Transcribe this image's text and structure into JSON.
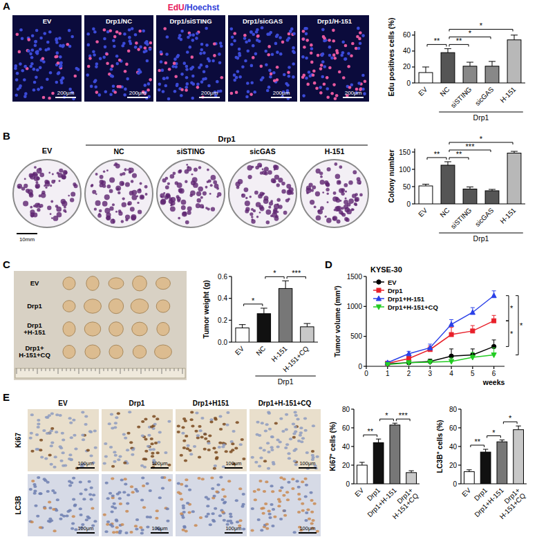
{
  "panel_labels": [
    "A",
    "B",
    "C",
    "D",
    "E"
  ],
  "images": {
    "A": {
      "title": [
        {
          "text": "EdU",
          "color": "#e8175d"
        },
        {
          "text": "/Hoechst",
          "color": "#2f3fd8"
        }
      ],
      "labels": [
        "EV",
        "Drp1/NC",
        "Drp1/siSTING",
        "Drp1/sicGAS",
        "Drp1/H-151"
      ],
      "scale_bar": "200μm"
    },
    "B": {
      "first": "EV",
      "group": "Drp1",
      "labels": [
        "NC",
        "siSTING",
        "sicGAS",
        "H-151"
      ],
      "scale_bar": "10mm"
    },
    "C": {
      "row_labels": [
        "EV",
        "Drp1",
        "Drp1\n+H-151",
        "Drp1+\nH-151+CQ"
      ]
    },
    "E": {
      "columns": [
        "EV",
        "Drp1",
        "Drp1+H151",
        "Drp1+H-151+CQ"
      ],
      "rows": [
        "Ki67",
        "LC3B"
      ],
      "scale_bar": "100μm"
    }
  },
  "chart_data": [
    {
      "type": "bar",
      "y_label": "Edu positives cells (%)",
      "categories": [
        "EV",
        "NC",
        "siSTING",
        "sicGAS",
        "H-151"
      ],
      "group": {
        "label": "Drp1",
        "members": [
          "NC",
          "siSTING",
          "sicGAS",
          "H-151"
        ]
      },
      "values": [
        13,
        38,
        21,
        21,
        54
      ],
      "errors": [
        7,
        5,
        5,
        6,
        6
      ],
      "colors": [
        "#ffffff",
        "#555555",
        "#888888",
        "#888888",
        "#b8b8b8"
      ],
      "ylim": [
        0,
        65
      ],
      "yticks": [
        0,
        20,
        40,
        60
      ],
      "annotations": [
        {
          "text": "**",
          "between": [
            "EV",
            "NC"
          ]
        },
        {
          "text": "**",
          "between": [
            "NC",
            "siSTING"
          ]
        },
        {
          "text": "*",
          "between": [
            "NC",
            "sicGAS"
          ]
        },
        {
          "text": "*",
          "between": [
            "NC",
            "H-151"
          ]
        }
      ]
    },
    {
      "type": "bar",
      "y_label": "Colony number",
      "categories": [
        "EV",
        "NC",
        "siSTING",
        "sicGAS",
        "H-151"
      ],
      "group": {
        "label": "Drp1",
        "members": [
          "NC",
          "siSTING",
          "sicGAS",
          "H-151"
        ]
      },
      "values": [
        52,
        112,
        43,
        38,
        147
      ],
      "errors": [
        5,
        10,
        6,
        4,
        5
      ],
      "colors": [
        "#ffffff",
        "#555555",
        "#555555",
        "#555555",
        "#b8b8b8"
      ],
      "ylim": [
        0,
        160
      ],
      "yticks": [
        0,
        50,
        100,
        150
      ],
      "annotations": [
        {
          "text": "**",
          "between": [
            "EV",
            "NC"
          ]
        },
        {
          "text": "**",
          "between": [
            "NC",
            "siSTING"
          ]
        },
        {
          "text": "***",
          "between": [
            "NC",
            "sicGAS"
          ]
        },
        {
          "text": "*",
          "between": [
            "NC",
            "H-151"
          ]
        }
      ]
    },
    {
      "type": "bar",
      "y_label": "Tumor weight (g)",
      "categories": [
        "EV",
        "NC",
        "H-151",
        "H-151+CQ"
      ],
      "group": {
        "label": "Drp1",
        "members": [
          "NC",
          "H-151",
          "H-151+CQ"
        ]
      },
      "values": [
        0.13,
        0.26,
        0.49,
        0.14
      ],
      "errors": [
        0.03,
        0.05,
        0.07,
        0.03
      ],
      "colors": [
        "#ffffff",
        "#111111",
        "#777777",
        "#c8c8c8"
      ],
      "ylim": [
        0,
        0.6
      ],
      "yticks": [
        {
          "value": 0,
          "label": "0.0"
        },
        0.2,
        0.4,
        0.6
      ],
      "annotations": [
        {
          "text": "*",
          "between": [
            "EV",
            "NC"
          ]
        },
        {
          "text": "*",
          "between": [
            "NC",
            "H-151"
          ]
        },
        {
          "text": "***",
          "between": [
            "H-151",
            "H-151+CQ"
          ]
        }
      ]
    },
    {
      "type": "line",
      "title": "KYSE-30",
      "x_label": "weeks",
      "y_label": "Tumor volume (mm³)",
      "x": [
        1,
        2,
        3,
        4,
        5,
        6
      ],
      "xlim": [
        0,
        6.5
      ],
      "xticks": [
        0,
        1,
        2,
        3,
        4,
        5,
        6
      ],
      "ylim": [
        0,
        1500
      ],
      "yticks": [
        0,
        500,
        1000,
        1500
      ],
      "legend": "upper left",
      "series": [
        {
          "name": "EV",
          "color": "#000000",
          "marker": "circle",
          "values": [
            40,
            60,
            80,
            170,
            190,
            330
          ],
          "errors": [
            20,
            30,
            40,
            120,
            100,
            110
          ]
        },
        {
          "name": "Drp1",
          "color": "#e8202a",
          "marker": "square",
          "values": [
            50,
            130,
            280,
            530,
            590,
            760
          ],
          "errors": [
            20,
            40,
            60,
            120,
            90,
            90
          ]
        },
        {
          "name": "Drp1+H-151",
          "color": "#2a40e8",
          "marker": "triangle",
          "values": [
            60,
            210,
            310,
            700,
            900,
            1180
          ],
          "errors": [
            20,
            40,
            60,
            80,
            80,
            80
          ]
        },
        {
          "name": "Drp1+H-151+CQ",
          "color": "#22cc22",
          "marker": "triangle-down",
          "values": [
            30,
            60,
            70,
            80,
            150,
            190
          ],
          "errors": [
            10,
            20,
            30,
            60,
            80,
            120
          ]
        }
      ],
      "annotations": [
        {
          "text": "*",
          "between": [
            "Drp1+H-151",
            "Drp1"
          ]
        },
        {
          "text": "*",
          "between": [
            "Drp1",
            "EV"
          ]
        },
        {
          "text": "*",
          "between": [
            "Drp1+H-151",
            "Drp1+H-151+CQ"
          ]
        }
      ]
    },
    {
      "type": "bar",
      "y_label": "Ki67⁺ cells (%)",
      "categories": [
        "EV",
        "Drp1",
        "Drp1+H-151",
        "Drp1+\nH-151+CQ"
      ],
      "values": [
        20,
        44,
        63,
        12
      ],
      "errors": [
        3,
        4,
        2,
        2
      ],
      "colors": [
        "#ffffff",
        "#111111",
        "#777777",
        "#c8c8c8"
      ],
      "ylim": [
        0,
        80
      ],
      "yticks": [
        0,
        20,
        40,
        60,
        80
      ],
      "annotations": [
        {
          "text": "**",
          "between": [
            "EV",
            "Drp1"
          ]
        },
        {
          "text": "*",
          "between": [
            "Drp1",
            "Drp1+H-151"
          ]
        },
        {
          "text": "***",
          "between": [
            "Drp1+H-151",
            "Drp1+\nH-151+CQ"
          ]
        }
      ]
    },
    {
      "type": "bar",
      "y_label": "LC3B⁺ cells (%)",
      "categories": [
        "EV",
        "Drp1",
        "Drp1+H-151",
        "Drp1+\nH-151+CQ"
      ],
      "values": [
        13,
        34,
        45,
        58
      ],
      "errors": [
        2,
        3,
        2,
        4
      ],
      "colors": [
        "#ffffff",
        "#111111",
        "#777777",
        "#c8c8c8"
      ],
      "ylim": [
        0,
        80
      ],
      "yticks": [
        0,
        20,
        40,
        60,
        80
      ],
      "annotations": [
        {
          "text": "**",
          "between": [
            "EV",
            "Drp1"
          ]
        },
        {
          "text": "*",
          "between": [
            "Drp1",
            "Drp1+H-151"
          ]
        },
        {
          "text": "*",
          "between": [
            "Drp1+H-151",
            "Drp1+\nH-151+CQ"
          ]
        }
      ]
    }
  ]
}
